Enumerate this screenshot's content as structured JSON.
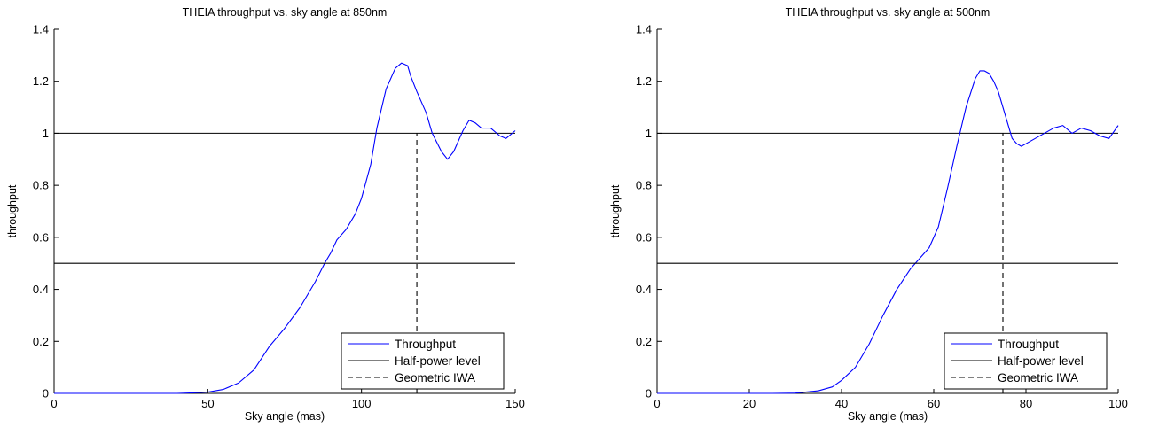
{
  "chart_data": [
    {
      "type": "line",
      "title": "THEIA throughput vs. sky angle at 850nm",
      "xlabel": "Sky angle (mas)",
      "ylabel": "throughput",
      "xlim": [
        0,
        150
      ],
      "ylim": [
        0,
        1.4
      ],
      "xticks": [
        0,
        50,
        100,
        150
      ],
      "yticks": [
        0,
        0.2,
        0.4,
        0.6,
        0.8,
        1,
        1.2,
        1.4
      ],
      "xtick_labels": [
        "0",
        "50",
        "100",
        "150"
      ],
      "ytick_labels": [
        "0",
        "0.2",
        "0.4",
        "0.6",
        "0.8",
        "1",
        "1.2",
        "1.4"
      ],
      "grid": false,
      "legend_position": "bottom-right",
      "series": [
        {
          "name": "Throughput",
          "color": "#0000ff",
          "style": "solid",
          "x": [
            0,
            20,
            40,
            45,
            50,
            55,
            60,
            65,
            70,
            75,
            80,
            85,
            88,
            90,
            92,
            95,
            98,
            100,
            103,
            105,
            108,
            111,
            113,
            115,
            116,
            118,
            121,
            123,
            126,
            128,
            130,
            133,
            135,
            137,
            139,
            142,
            145,
            147,
            150
          ],
          "y": [
            0,
            0,
            0,
            0.002,
            0.005,
            0.015,
            0.04,
            0.09,
            0.18,
            0.25,
            0.33,
            0.43,
            0.5,
            0.54,
            0.59,
            0.63,
            0.69,
            0.75,
            0.88,
            1.02,
            1.17,
            1.25,
            1.27,
            1.26,
            1.22,
            1.16,
            1.08,
            1.0,
            0.93,
            0.9,
            0.93,
            1.01,
            1.05,
            1.04,
            1.02,
            1.02,
            0.99,
            0.98,
            1.01
          ]
        },
        {
          "name": "Half-power level",
          "color": "#000000",
          "style": "solid",
          "x": [
            0,
            150
          ],
          "y": [
            0.5,
            0.5
          ]
        },
        {
          "name": "Geometric IWA",
          "color": "#000000",
          "style": "dashed",
          "x": [
            118,
            118
          ],
          "y": [
            0,
            1
          ]
        }
      ],
      "reference_lines": [
        {
          "color": "#000000",
          "style": "solid",
          "x": [
            0,
            150
          ],
          "y": [
            1,
            1
          ]
        }
      ]
    },
    {
      "type": "line",
      "title": "THEIA throughput vs. sky angle at 500nm",
      "xlabel": "Sky angle (mas)",
      "ylabel": "throughput",
      "xlim": [
        0,
        100
      ],
      "ylim": [
        0,
        1.4
      ],
      "xticks": [
        0,
        20,
        40,
        60,
        80,
        100
      ],
      "yticks": [
        0,
        0.2,
        0.4,
        0.6,
        0.8,
        1,
        1.2,
        1.4
      ],
      "xtick_labels": [
        "0",
        "20",
        "40",
        "60",
        "80",
        "100"
      ],
      "ytick_labels": [
        "0",
        "0.2",
        "0.4",
        "0.6",
        "0.8",
        "1",
        "1.2",
        "1.4"
      ],
      "grid": false,
      "legend_position": "bottom-right",
      "series": [
        {
          "name": "Throughput",
          "color": "#0000ff",
          "style": "solid",
          "x": [
            0,
            20,
            25,
            30,
            35,
            38,
            40,
            43,
            46,
            49,
            52,
            55,
            57,
            59,
            61,
            63,
            65,
            67,
            69,
            70,
            71,
            72,
            73,
            74,
            75,
            76,
            77,
            78,
            79,
            80,
            82,
            84,
            86,
            88,
            90,
            92,
            94,
            96,
            98,
            100
          ],
          "y": [
            0,
            0,
            0,
            0.001,
            0.01,
            0.025,
            0.05,
            0.1,
            0.19,
            0.3,
            0.4,
            0.48,
            0.52,
            0.56,
            0.64,
            0.79,
            0.95,
            1.1,
            1.21,
            1.24,
            1.24,
            1.23,
            1.2,
            1.16,
            1.1,
            1.04,
            0.98,
            0.96,
            0.95,
            0.96,
            0.98,
            1.0,
            1.02,
            1.03,
            1.0,
            1.02,
            1.01,
            0.99,
            0.98,
            1.03
          ]
        },
        {
          "name": "Half-power level",
          "color": "#000000",
          "style": "solid",
          "x": [
            0,
            100
          ],
          "y": [
            0.5,
            0.5
          ]
        },
        {
          "name": "Geometric IWA",
          "color": "#000000",
          "style": "dashed",
          "x": [
            75,
            75
          ],
          "y": [
            0,
            1
          ]
        }
      ],
      "reference_lines": [
        {
          "color": "#000000",
          "style": "solid",
          "x": [
            0,
            100
          ],
          "y": [
            1,
            1
          ]
        }
      ]
    }
  ]
}
